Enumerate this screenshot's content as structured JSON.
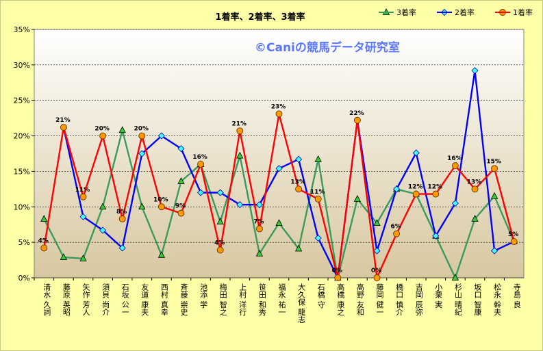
{
  "chart_data": {
    "type": "line",
    "title": "1着率、2着率、3着率",
    "watermark": "©Caniの競馬データ研究室",
    "ylim": [
      0,
      35
    ],
    "yticks": [
      "0%",
      "5%",
      "10%",
      "15%",
      "20%",
      "25%",
      "30%",
      "35%"
    ],
    "legend_position": "top-right",
    "categories": [
      "清水 久詞",
      "藤原 英昭",
      "矢作 芳人",
      "須貝 尚介",
      "石坂 公一",
      "友道 康夫",
      "西村 真幸",
      "斉藤 崇史",
      "池添 学",
      "梅田 智之",
      "上村 洋行",
      "笹田 和秀",
      "福永 祐一",
      "大久保 龍志",
      "石橋 守",
      "高橋 康之",
      "高野 友和",
      "藤岡 健一",
      "橋口 慎介",
      "吉岡 辰弥",
      "小栗 実",
      "杉山 晴紀",
      "坂口 智康",
      "松永 幹夫",
      "寺島 良"
    ],
    "series": [
      {
        "name": "3着率",
        "color": "#3a9a5e",
        "marker": "triangle",
        "fill": "#33cc33",
        "values": [
          8.3,
          2.9,
          2.7,
          10.0,
          20.8,
          10.0,
          3.2,
          13.6,
          16.0,
          7.9,
          17.2,
          3.4,
          7.7,
          4.1,
          16.7,
          0.0,
          11.1,
          7.7,
          12.5,
          11.8,
          5.9,
          0.0,
          8.3,
          11.5,
          5.1
        ]
      },
      {
        "name": "2着率",
        "color": "#0000ff",
        "marker": "diamond",
        "fill": "#44ffff",
        "values": [
          null,
          21.2,
          8.6,
          6.7,
          4.2,
          17.5,
          20.0,
          18.2,
          12.0,
          12.0,
          10.3,
          10.3,
          15.4,
          16.7,
          5.6,
          0.0,
          22.2,
          3.8,
          12.5,
          17.6,
          5.9,
          10.5,
          29.2,
          3.8,
          5.1
        ]
      },
      {
        "name": "1着率",
        "color": "#ff0000",
        "marker": "circle",
        "fill": "#ff9900",
        "values": [
          4.2,
          21.2,
          11.4,
          20.0,
          8.3,
          20.0,
          10.0,
          9.1,
          16.0,
          3.9,
          20.7,
          6.9,
          23.1,
          12.5,
          11.1,
          0.0,
          22.2,
          0.0,
          6.2,
          11.8,
          11.8,
          15.8,
          12.5,
          15.4,
          5.1
        ],
        "labels": [
          "4%",
          "21%",
          "11%",
          "20%",
          "8%",
          "20%",
          "10%",
          "9%",
          "16%",
          "4%",
          "21%",
          "7%",
          "23%",
          "13%",
          "11%",
          "0%",
          "22%",
          "0%",
          "6%",
          "12%",
          "12%",
          "16%",
          "13%",
          "15%",
          "5%"
        ]
      }
    ]
  }
}
